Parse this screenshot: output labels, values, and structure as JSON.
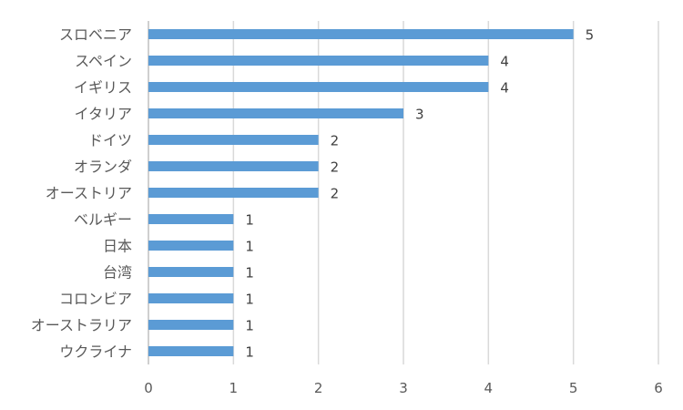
{
  "chart_data": {
    "type": "bar",
    "orientation": "horizontal",
    "categories": [
      "スロベニア",
      "スペイン",
      "イギリス",
      "イタリア",
      "ドイツ",
      "オランダ",
      "オーストリア",
      "ベルギー",
      "日本",
      "台湾",
      "コロンビア",
      "オーストラリア",
      "ウクライナ"
    ],
    "values": [
      5,
      4,
      4,
      3,
      2,
      2,
      2,
      1,
      1,
      1,
      1,
      1,
      1
    ],
    "xlim": [
      0,
      6
    ],
    "x_ticks": [
      "0",
      "1",
      "2",
      "3",
      "4",
      "5",
      "6"
    ],
    "grid": true,
    "bar_color": "#5b9bd5",
    "data_labels": true
  }
}
